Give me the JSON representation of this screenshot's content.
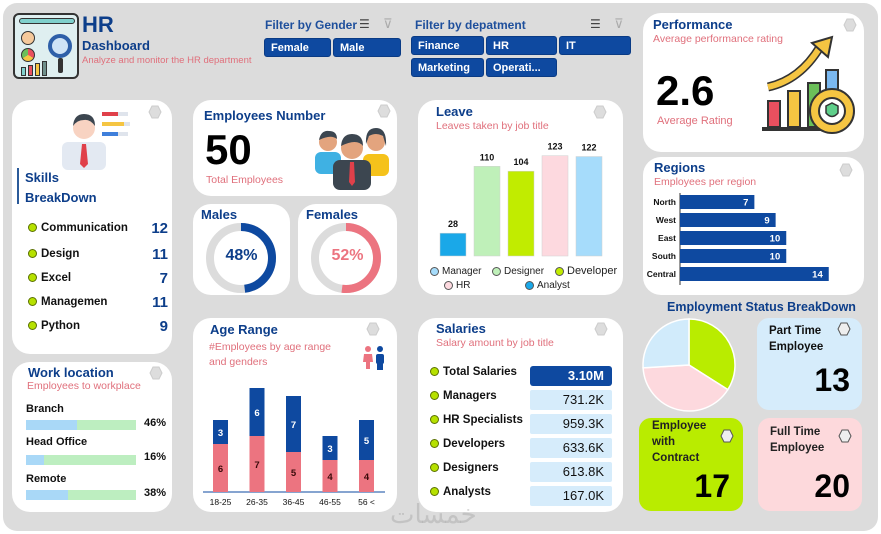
{
  "header": {
    "title": "HR",
    "subtitle": "Dashboard",
    "tagline": "Analyze and monitor the HR department"
  },
  "filters": {
    "gender": {
      "title": "Filter by Gender",
      "options": [
        "Female",
        "Male"
      ]
    },
    "department": {
      "title": "Filter by depatment",
      "options": [
        "Finance",
        "HR",
        "IT",
        "Marketing",
        "Operati..."
      ]
    }
  },
  "performance": {
    "title": "Performance",
    "subtitle": "Average performance rating",
    "value": "2.6",
    "label": "Average Rating"
  },
  "skills": {
    "title_line1": "Skills",
    "title_line2": "BreakDown",
    "items": [
      {
        "label": "Communication",
        "value": "12"
      },
      {
        "label": "Design",
        "value": "11"
      },
      {
        "label": "Excel",
        "value": "7"
      },
      {
        "label": "Managemen",
        "value": "11"
      },
      {
        "label": "Python",
        "value": "9"
      }
    ]
  },
  "employees": {
    "title": "Employees Number",
    "value": "50",
    "label": "Total Employees"
  },
  "gender_split": {
    "males": {
      "title": "Males",
      "percent": 48,
      "label": "48%"
    },
    "females": {
      "title": "Females",
      "percent": 52,
      "label": "52%"
    }
  },
  "leave": {
    "title": "Leave",
    "subtitle": "Leaves taken by job title",
    "legend": [
      "Manager",
      "Designer",
      "Developer",
      "HR",
      "Analyst"
    ]
  },
  "regions": {
    "title": "Regions",
    "subtitle": "Employees per region"
  },
  "work_location": {
    "title": "Work location",
    "subtitle": "Employees to workplace",
    "items": [
      {
        "label": "Branch",
        "percent": 46,
        "pct_label": "46%"
      },
      {
        "label": "Head Office",
        "percent": 16,
        "pct_label": "16%"
      },
      {
        "label": "Remote",
        "percent": 38,
        "pct_label": "38%"
      }
    ]
  },
  "age_range": {
    "title": "Age Range",
    "subtitle_line1": "#Employees by age range",
    "subtitle_line2": "and genders"
  },
  "salaries": {
    "title": "Salaries",
    "subtitle": "Salary amount by job title",
    "rows": [
      {
        "label": "Total Salaries",
        "value": "3.10M"
      },
      {
        "label": "Managers",
        "value": "731.2K"
      },
      {
        "label": "HR Specialists",
        "value": "959.3K"
      },
      {
        "label": "Developers",
        "value": "633.6K"
      },
      {
        "label": "Designers",
        "value": "613.8K"
      },
      {
        "label": "Analysts",
        "value": "167.0K"
      }
    ]
  },
  "employment_status": {
    "title": "Employment Status BreakDown",
    "part_time": {
      "line1": "Part Time",
      "line2": "Employee",
      "value": "13"
    },
    "contract": {
      "line1": "Employee",
      "line2": "with",
      "line3": "Contract",
      "value": "17"
    },
    "full_time": {
      "line1": "Full Time",
      "line2": "Employee",
      "value": "20"
    }
  },
  "watermark": "خمسات",
  "colors": {
    "primary_blue": "#0e49a0",
    "title_blue": "#0d3e8a",
    "pink_sub": "#e0707c",
    "lime": "#b6e100",
    "light_pink": "#fdd9dc",
    "light_blue": "#d6ecfb"
  },
  "chart_data": [
    {
      "type": "bar",
      "title": "Leave",
      "subtitle": "Leaves taken by job title",
      "categories": [
        "Analyst",
        "Designer",
        "Developer",
        "HR",
        "Manager"
      ],
      "values": [
        28,
        110,
        104,
        123,
        122
      ],
      "colors": [
        "#1aa8e8",
        "#bff0b9",
        "#c1ec00",
        "#fdd9df",
        "#a6dcfb"
      ],
      "ylim": [
        0,
        130
      ],
      "legend": [
        "Manager",
        "Designer",
        "Developer",
        "HR",
        "Analyst"
      ],
      "legend_position": "bottom"
    },
    {
      "type": "bar",
      "orientation": "horizontal",
      "title": "Regions",
      "subtitle": "Employees per region",
      "categories": [
        "North",
        "West",
        "East",
        "South",
        "Central"
      ],
      "values": [
        7,
        9,
        10,
        10,
        14
      ],
      "xlim": [
        0,
        16
      ]
    },
    {
      "type": "bar",
      "stacked": true,
      "title": "Age Range",
      "subtitle": "#Employees by age range and genders",
      "categories": [
        "18-25",
        "26-35",
        "36-45",
        "46-55",
        "56 <"
      ],
      "series": [
        {
          "name": "Female",
          "color": "#ec7480",
          "values": [
            6,
            7,
            5,
            4,
            4
          ]
        },
        {
          "name": "Male",
          "color": "#0e49a0",
          "values": [
            3,
            6,
            7,
            3,
            5
          ]
        }
      ],
      "ylim": [
        0,
        14
      ]
    },
    {
      "type": "pie",
      "title": "Employment Status BreakDown",
      "labels": [
        "Employee with Contract",
        "Full Time Employee",
        "Part Time Employee"
      ],
      "values": [
        17,
        20,
        13
      ],
      "colors": [
        "#b9ec00",
        "#fdd9de",
        "#d1ebfb"
      ]
    }
  ]
}
